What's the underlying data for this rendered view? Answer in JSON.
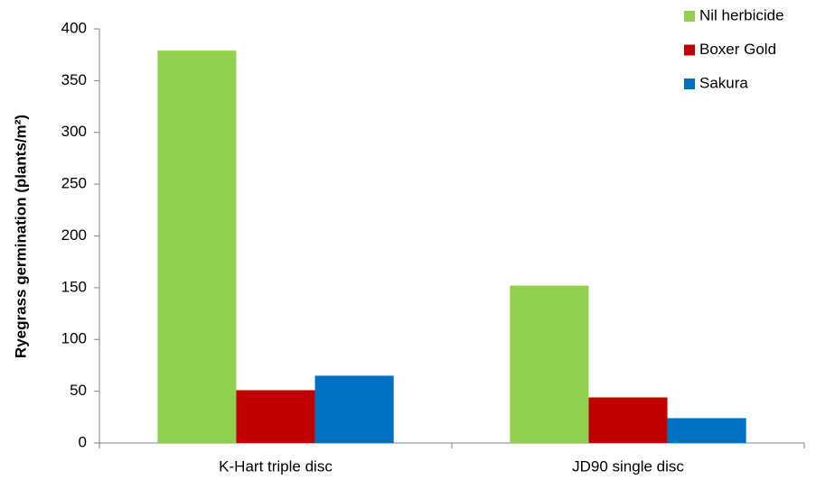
{
  "chart_data": {
    "type": "bar",
    "y_label": "Ryegrass germination  (plants/m²)",
    "categories": [
      "K-Hart triple disc",
      "JD90 single disc"
    ],
    "series": [
      {
        "name": "Nil herbicide",
        "color": "#92d050",
        "values": [
          379,
          152
        ]
      },
      {
        "name": "Boxer Gold",
        "color": "#c00000",
        "values": [
          51,
          44
        ]
      },
      {
        "name": "Sakura",
        "color": "#0070c0",
        "values": [
          65,
          24
        ]
      }
    ],
    "ylim": [
      0,
      400
    ],
    "yticks": [
      0,
      50,
      100,
      150,
      200,
      250,
      300,
      350,
      400
    ],
    "grid": false,
    "legend": "top-right"
  }
}
